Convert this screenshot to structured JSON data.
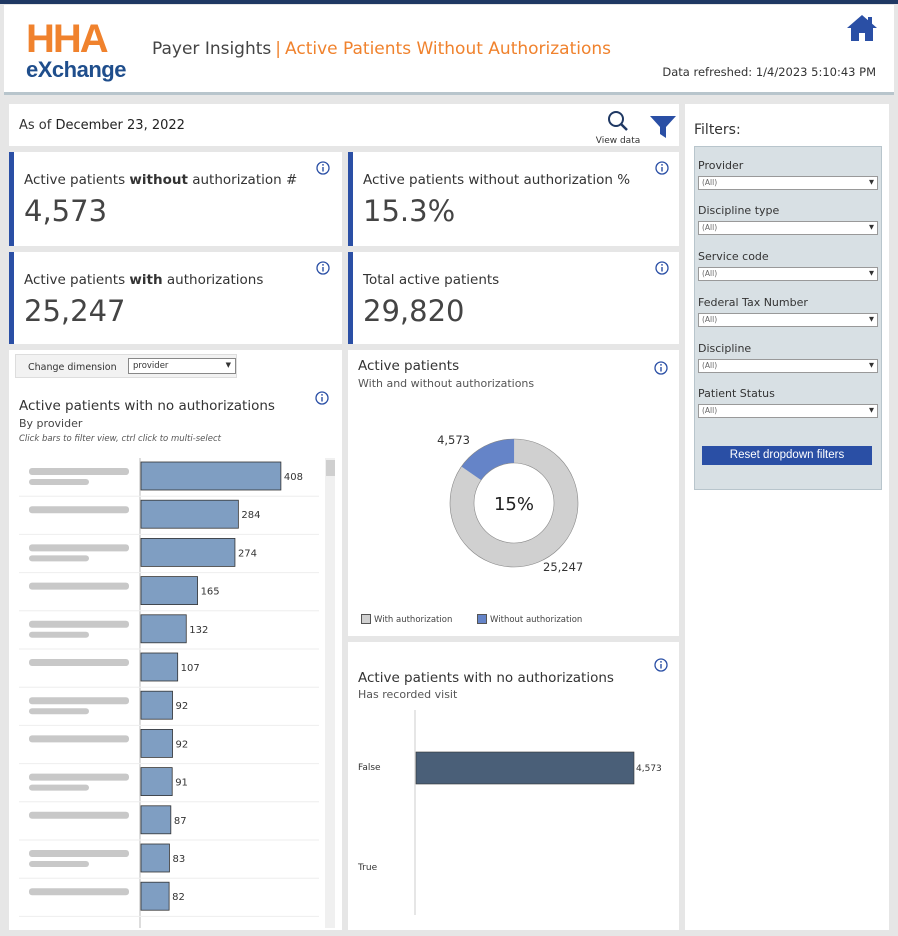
{
  "header": {
    "logo_top": "HHA",
    "logo_bottom": "eXchange",
    "app_title": "Payer Insights",
    "separator": "|",
    "page_title": "Active Patients Without Authorizations",
    "refreshed": "Data refreshed: 1/4/2023 5:10:43 PM",
    "home_icon": "home-icon"
  },
  "asof": {
    "prefix": "As of",
    "date": "December 23, 2022",
    "view_data_label": "View data"
  },
  "kpis": {
    "without_count": {
      "label_pre": "Active patients ",
      "label_bold": "without",
      "label_post": " authorization #",
      "value": "4,573"
    },
    "without_pct": {
      "label": "Active patients without authorization %",
      "value": "15.3%"
    },
    "with_count": {
      "label_pre": "Active patients ",
      "label_bold": "with",
      "label_post": " authorizations",
      "value": "25,247"
    },
    "total": {
      "label": "Total active patients",
      "value": "29,820"
    }
  },
  "provider_chart": {
    "dimension_label": "Change dimension",
    "dimension_value": "provider",
    "title": "Active patients with no authorizations",
    "subtitle": "By provider",
    "note": "Click bars to filter view, ctrl click to multi-select"
  },
  "donut": {
    "title": "Active patients",
    "subtitle": "With and without authorizations",
    "center_label": "15%",
    "legend_with": "With authorization",
    "legend_without": "Without authorization"
  },
  "visit_chart": {
    "title": "Active patients with no authorizations",
    "subtitle": "Has recorded visit"
  },
  "filters": {
    "title": "Filters:",
    "items": [
      {
        "label": "Provider",
        "value": "(All)"
      },
      {
        "label": "Discipline type",
        "value": "(All)"
      },
      {
        "label": "Service code",
        "value": "(All)"
      },
      {
        "label": "Federal Tax Number",
        "value": "(All)"
      },
      {
        "label": "Discipline",
        "value": "(All)"
      },
      {
        "label": "Patient Status",
        "value": "(All)"
      }
    ],
    "reset_label": "Reset dropdown filters"
  },
  "colors": {
    "accent_orange": "#f0822d",
    "brand_blue": "#2a4fa5",
    "bar_light": "#7f9ec2",
    "bar_dark": "#4a5f78",
    "donut_with": "#d0d0d0",
    "donut_without": "#6584c8"
  },
  "chart_data": [
    {
      "type": "bar",
      "orientation": "horizontal",
      "title": "Active patients with no authorizations",
      "subtitle": "By provider",
      "categories": [
        "",
        "",
        "",
        "",
        "",
        "",
        "",
        "",
        "",
        "",
        "",
        ""
      ],
      "values": [
        408,
        284,
        274,
        165,
        132,
        107,
        92,
        92,
        91,
        87,
        83,
        82
      ],
      "xlim": [
        0,
        420
      ]
    },
    {
      "type": "pie",
      "donut": true,
      "title": "Active patients",
      "subtitle": "With and without authorizations",
      "categories": [
        "With authorization",
        "Without authorization"
      ],
      "values": [
        25247,
        4573
      ],
      "center_label": "15%",
      "legend": "bottom"
    },
    {
      "type": "bar",
      "orientation": "horizontal",
      "title": "Active patients with no authorizations",
      "subtitle": "Has recorded visit",
      "categories": [
        "False",
        "True"
      ],
      "values": [
        4573,
        0
      ]
    }
  ]
}
